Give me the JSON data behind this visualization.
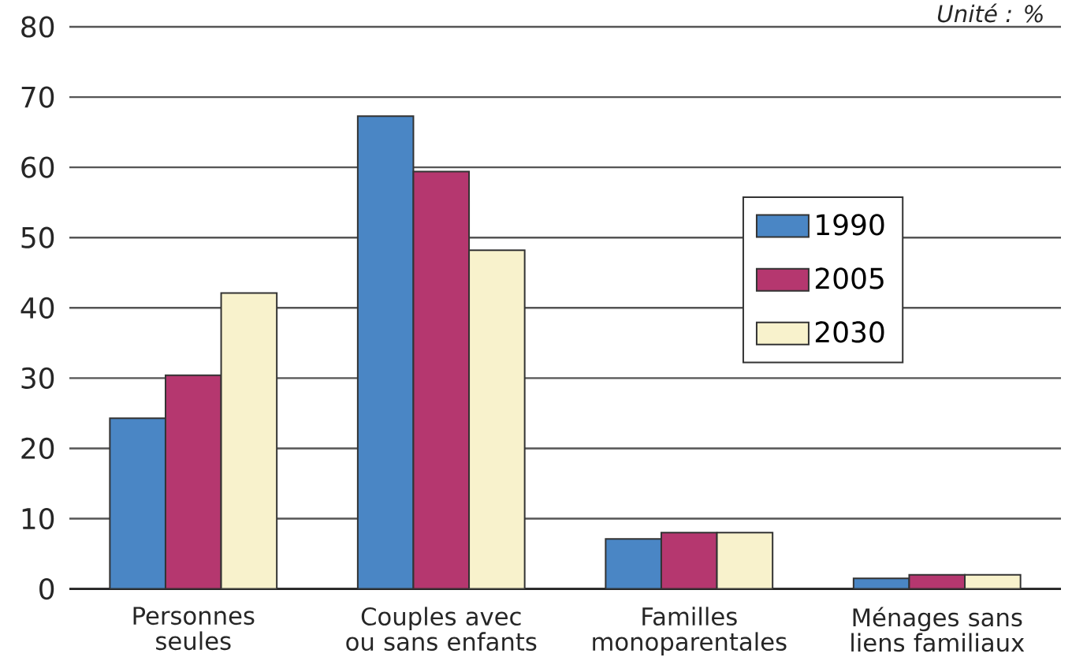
{
  "chart_data": {
    "type": "bar",
    "annotations": [
      "Unité : %"
    ],
    "categories": [
      "Personnes seules",
      "Couples avec ou sans enfants",
      "Familles monoparentales",
      "Ménages sans liens familiaux"
    ],
    "series": [
      {
        "name": "1990",
        "color": "#4a86c5",
        "values": [
          24.3,
          67.3,
          7.1,
          1.5
        ]
      },
      {
        "name": "2005",
        "color": "#b5376f",
        "values": [
          30.4,
          59.4,
          8.0,
          2.0
        ]
      },
      {
        "name": "2030",
        "color": "#f8f2cc",
        "values": [
          42.1,
          48.2,
          8.0,
          2.0
        ]
      }
    ],
    "ylim": [
      0,
      80
    ],
    "yticks": [
      0,
      10,
      20,
      30,
      40,
      50,
      60,
      70,
      80
    ],
    "grid": "y",
    "legend": "right"
  }
}
